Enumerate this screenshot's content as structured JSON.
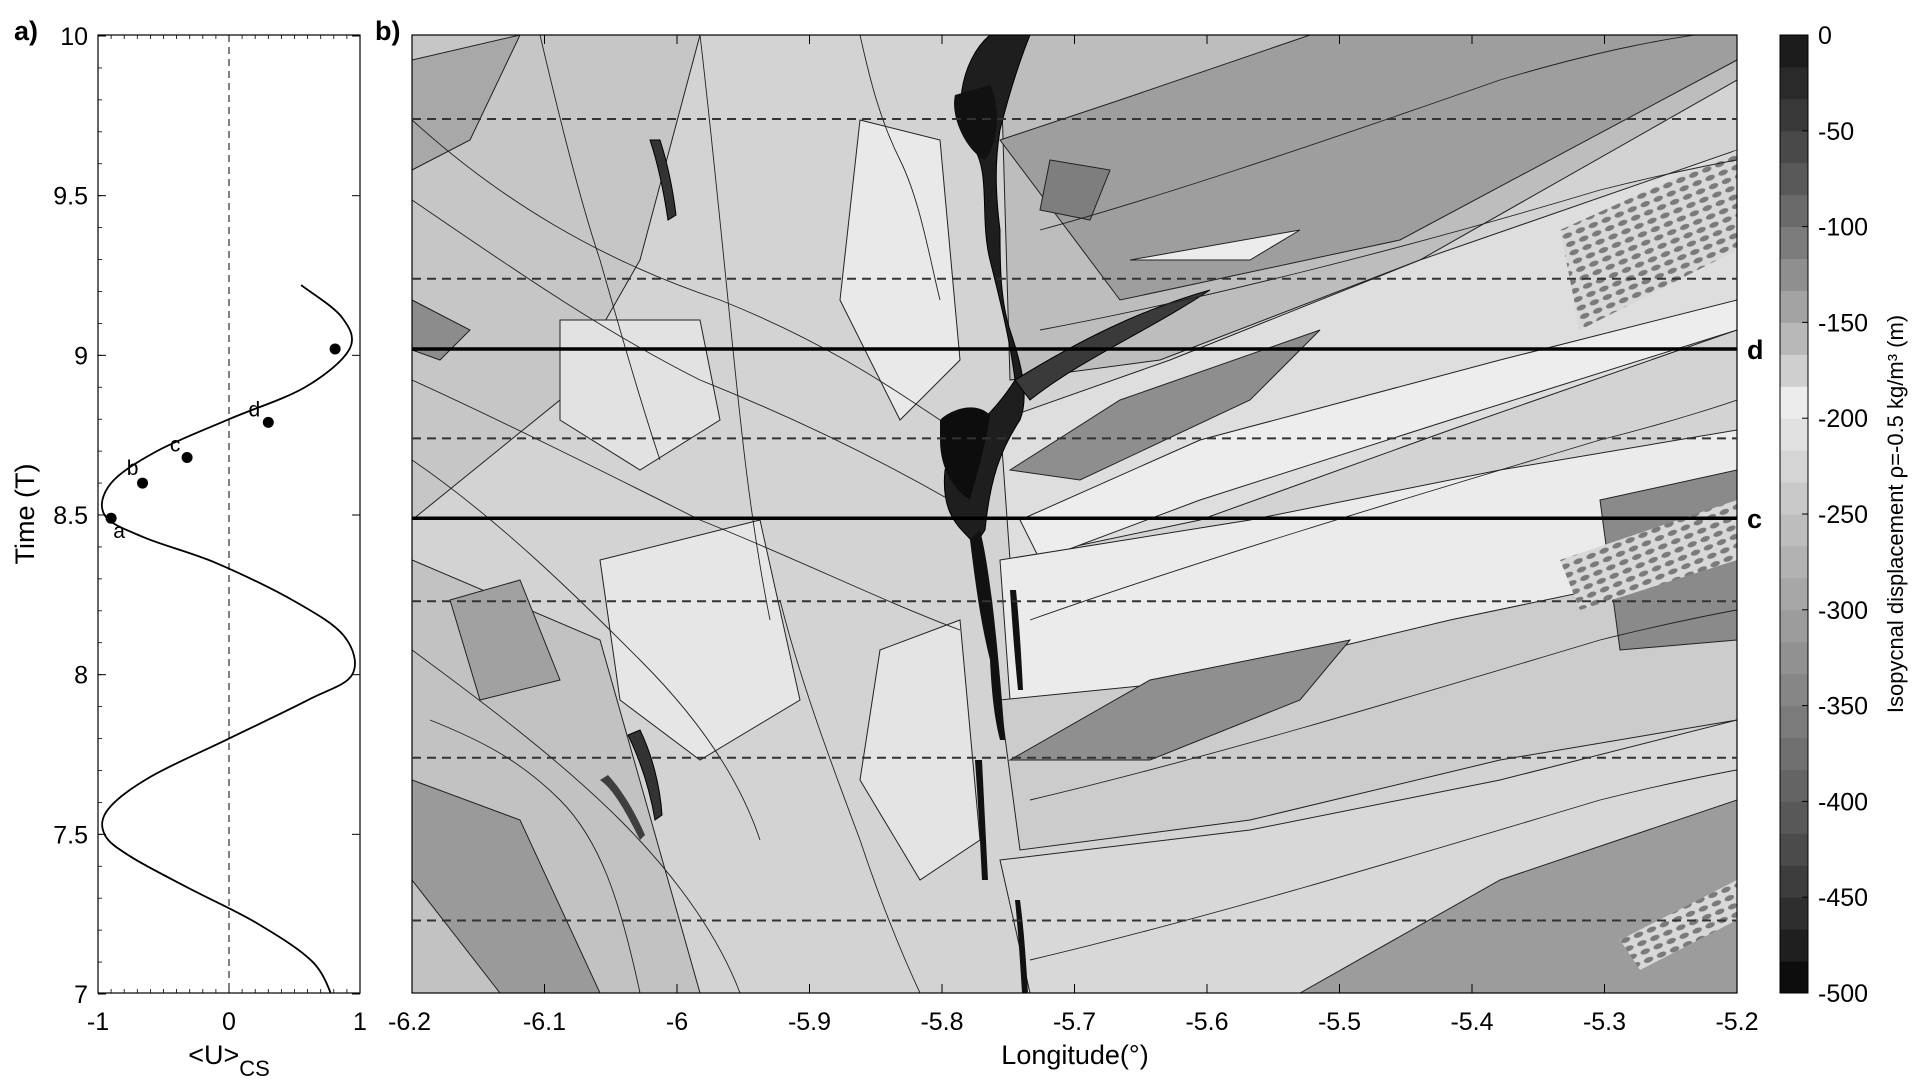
{
  "chart_data": [
    {
      "panel_label": "a)",
      "type": "line",
      "xlabel": "<U>",
      "xlabel_sub": "CS",
      "ylabel": "Time (T)",
      "xlim": [
        -1,
        1
      ],
      "ylim": [
        7,
        10
      ],
      "x_ticks": [
        "-1",
        "0",
        "1"
      ],
      "y_ticks": [
        "7",
        "7.5",
        "8",
        "8.5",
        "9",
        "9.5",
        "10"
      ],
      "series": [
        {
          "x": [
            0.8,
            0.64,
            0.22,
            -0.3,
            -0.75,
            -0.95,
            -0.92,
            -0.6,
            0.0,
            0.6,
            0.94,
            0.88,
            0.5,
            -0.1,
            -0.65,
            -0.95,
            -0.9,
            -0.55,
            0.0,
            0.58,
            0.92,
            0.86,
            0.55
          ],
          "y": [
            6.98,
            7.1,
            7.22,
            7.33,
            7.43,
            7.5,
            7.58,
            7.68,
            7.8,
            7.92,
            8.0,
            8.12,
            8.23,
            8.35,
            8.43,
            8.5,
            8.6,
            8.7,
            8.8,
            8.9,
            9.02,
            9.12,
            9.22
          ]
        }
      ],
      "markers": [
        {
          "label": "a",
          "x": -0.9,
          "y": 8.49
        },
        {
          "label": "b",
          "x": -0.66,
          "y": 8.6
        },
        {
          "label": "c",
          "x": -0.32,
          "y": 8.68
        },
        {
          "label": "d",
          "x": 0.3,
          "y": 8.79
        },
        {
          "label": "",
          "x": 0.81,
          "y": 9.02
        }
      ],
      "vline_x": 0
    },
    {
      "panel_label": "b)",
      "type": "heatmap",
      "xlabel": "Longitude(°)",
      "xlim": [
        -6.2,
        -5.2
      ],
      "ylim": [
        7,
        10
      ],
      "x_ticks": [
        "-6.2",
        "-6.1",
        "-6",
        "-5.9",
        "-5.8",
        "-5.7",
        "-5.6",
        "-5.5",
        "-5.4",
        "-5.3",
        "-5.2"
      ],
      "dashed_lines_y": [
        7.23,
        7.74,
        8.23,
        8.74,
        9.24,
        9.74
      ],
      "solid_lines": [
        {
          "y": 9.02,
          "label": "d"
        },
        {
          "y": 8.49,
          "label": "c"
        }
      ],
      "colorbar": {
        "label": "Isopycnal displacement ρ=-0.5 kg/m³ (m)",
        "ticks": [
          "0",
          "-50",
          "-100",
          "-150",
          "-200",
          "-250",
          "-300",
          "-350",
          "-400",
          "-450",
          "-500"
        ],
        "range": [
          -500,
          0
        ],
        "gray_levels": [
          "#0d0d0d",
          "#1f1f1f",
          "#2e2e2e",
          "#3d3d3d",
          "#4b4b4b",
          "#585858",
          "#646464",
          "#707070",
          "#7b7b7b",
          "#868686",
          "#919191",
          "#9c9c9c",
          "#a7a7a7",
          "#b2b2b2",
          "#bdbdbd",
          "#c9c9c9",
          "#d5d5d5",
          "#e1e1e1",
          "#ececec",
          "#cfcfcf",
          "#b8b8b8",
          "#a3a3a3",
          "#8f8f8f",
          "#7c7c7c",
          "#6a6a6a",
          "#595959",
          "#494949",
          "#393939",
          "#2a2a2a",
          "#1c1c1c"
        ]
      }
    }
  ]
}
